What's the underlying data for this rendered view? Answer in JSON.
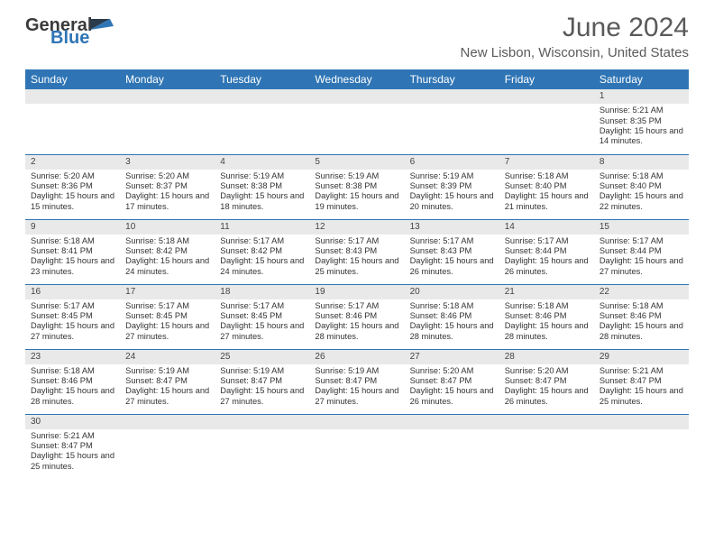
{
  "logo": {
    "part1": "General",
    "part2": "Blue"
  },
  "title": "June 2024",
  "subtitle": "New Lisbon, Wisconsin, United States",
  "colors": {
    "header_bg": "#2f75b5",
    "header_fg": "#ffffff",
    "daynum_bg": "#e9e9e9",
    "border": "#2f75b5",
    "text": "#333333",
    "title_color": "#5a5a5a"
  },
  "daynames": [
    "Sunday",
    "Monday",
    "Tuesday",
    "Wednesday",
    "Thursday",
    "Friday",
    "Saturday"
  ],
  "weeks": [
    [
      {
        "n": null
      },
      {
        "n": null
      },
      {
        "n": null
      },
      {
        "n": null
      },
      {
        "n": null
      },
      {
        "n": null
      },
      {
        "n": 1,
        "sr": "5:21 AM",
        "ss": "8:35 PM",
        "dh": 15,
        "dm": 14
      }
    ],
    [
      {
        "n": 2,
        "sr": "5:20 AM",
        "ss": "8:36 PM",
        "dh": 15,
        "dm": 15
      },
      {
        "n": 3,
        "sr": "5:20 AM",
        "ss": "8:37 PM",
        "dh": 15,
        "dm": 17
      },
      {
        "n": 4,
        "sr": "5:19 AM",
        "ss": "8:38 PM",
        "dh": 15,
        "dm": 18
      },
      {
        "n": 5,
        "sr": "5:19 AM",
        "ss": "8:38 PM",
        "dh": 15,
        "dm": 19
      },
      {
        "n": 6,
        "sr": "5:19 AM",
        "ss": "8:39 PM",
        "dh": 15,
        "dm": 20
      },
      {
        "n": 7,
        "sr": "5:18 AM",
        "ss": "8:40 PM",
        "dh": 15,
        "dm": 21
      },
      {
        "n": 8,
        "sr": "5:18 AM",
        "ss": "8:40 PM",
        "dh": 15,
        "dm": 22
      }
    ],
    [
      {
        "n": 9,
        "sr": "5:18 AM",
        "ss": "8:41 PM",
        "dh": 15,
        "dm": 23
      },
      {
        "n": 10,
        "sr": "5:18 AM",
        "ss": "8:42 PM",
        "dh": 15,
        "dm": 24
      },
      {
        "n": 11,
        "sr": "5:17 AM",
        "ss": "8:42 PM",
        "dh": 15,
        "dm": 24
      },
      {
        "n": 12,
        "sr": "5:17 AM",
        "ss": "8:43 PM",
        "dh": 15,
        "dm": 25
      },
      {
        "n": 13,
        "sr": "5:17 AM",
        "ss": "8:43 PM",
        "dh": 15,
        "dm": 26
      },
      {
        "n": 14,
        "sr": "5:17 AM",
        "ss": "8:44 PM",
        "dh": 15,
        "dm": 26
      },
      {
        "n": 15,
        "sr": "5:17 AM",
        "ss": "8:44 PM",
        "dh": 15,
        "dm": 27
      }
    ],
    [
      {
        "n": 16,
        "sr": "5:17 AM",
        "ss": "8:45 PM",
        "dh": 15,
        "dm": 27
      },
      {
        "n": 17,
        "sr": "5:17 AM",
        "ss": "8:45 PM",
        "dh": 15,
        "dm": 27
      },
      {
        "n": 18,
        "sr": "5:17 AM",
        "ss": "8:45 PM",
        "dh": 15,
        "dm": 27
      },
      {
        "n": 19,
        "sr": "5:17 AM",
        "ss": "8:46 PM",
        "dh": 15,
        "dm": 28
      },
      {
        "n": 20,
        "sr": "5:18 AM",
        "ss": "8:46 PM",
        "dh": 15,
        "dm": 28
      },
      {
        "n": 21,
        "sr": "5:18 AM",
        "ss": "8:46 PM",
        "dh": 15,
        "dm": 28
      },
      {
        "n": 22,
        "sr": "5:18 AM",
        "ss": "8:46 PM",
        "dh": 15,
        "dm": 28
      }
    ],
    [
      {
        "n": 23,
        "sr": "5:18 AM",
        "ss": "8:46 PM",
        "dh": 15,
        "dm": 28
      },
      {
        "n": 24,
        "sr": "5:19 AM",
        "ss": "8:47 PM",
        "dh": 15,
        "dm": 27
      },
      {
        "n": 25,
        "sr": "5:19 AM",
        "ss": "8:47 PM",
        "dh": 15,
        "dm": 27
      },
      {
        "n": 26,
        "sr": "5:19 AM",
        "ss": "8:47 PM",
        "dh": 15,
        "dm": 27
      },
      {
        "n": 27,
        "sr": "5:20 AM",
        "ss": "8:47 PM",
        "dh": 15,
        "dm": 26
      },
      {
        "n": 28,
        "sr": "5:20 AM",
        "ss": "8:47 PM",
        "dh": 15,
        "dm": 26
      },
      {
        "n": 29,
        "sr": "5:21 AM",
        "ss": "8:47 PM",
        "dh": 15,
        "dm": 25
      }
    ],
    [
      {
        "n": 30,
        "sr": "5:21 AM",
        "ss": "8:47 PM",
        "dh": 15,
        "dm": 25
      },
      {
        "n": null
      },
      {
        "n": null
      },
      {
        "n": null
      },
      {
        "n": null
      },
      {
        "n": null
      },
      {
        "n": null
      }
    ]
  ],
  "labels": {
    "sunrise": "Sunrise:",
    "sunset": "Sunset:",
    "daylight_prefix": "Daylight:",
    "hours_word": "hours",
    "and_word": "and",
    "minutes_word": "minutes."
  }
}
